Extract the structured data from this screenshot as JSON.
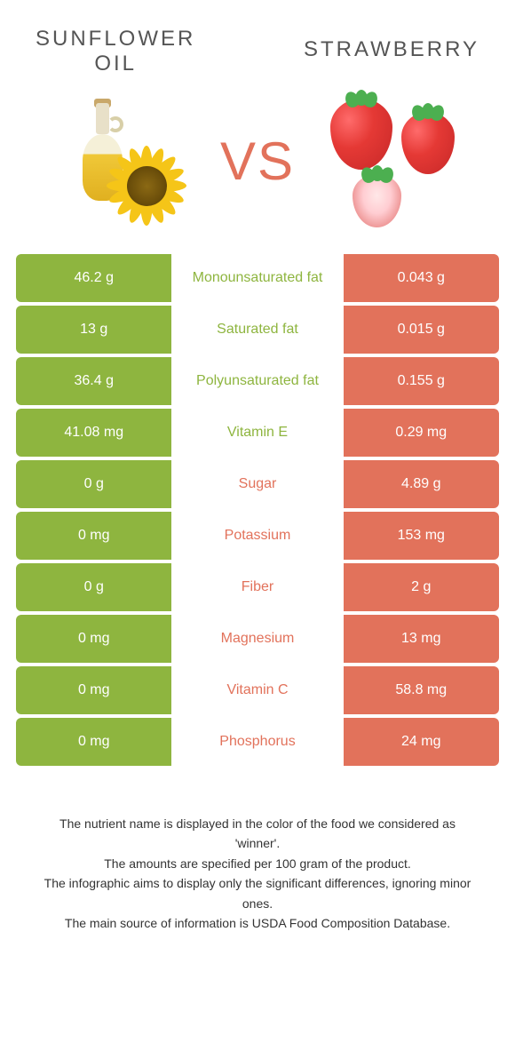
{
  "colors": {
    "left": "#8eb53f",
    "right": "#e2725b",
    "mid_bg": "#ffffff",
    "cell_text": "#ffffff"
  },
  "header": {
    "left_title": "Sunflower\noil",
    "right_title": "Strawberry",
    "vs": "VS"
  },
  "rows": [
    {
      "left": "46.2 g",
      "label": "Monounsaturated fat",
      "right": "0.043 g",
      "winner": "left"
    },
    {
      "left": "13 g",
      "label": "Saturated fat",
      "right": "0.015 g",
      "winner": "left"
    },
    {
      "left": "36.4 g",
      "label": "Polyunsaturated fat",
      "right": "0.155 g",
      "winner": "left"
    },
    {
      "left": "41.08 mg",
      "label": "Vitamin E",
      "right": "0.29 mg",
      "winner": "left"
    },
    {
      "left": "0 g",
      "label": "Sugar",
      "right": "4.89 g",
      "winner": "right"
    },
    {
      "left": "0 mg",
      "label": "Potassium",
      "right": "153 mg",
      "winner": "right"
    },
    {
      "left": "0 g",
      "label": "Fiber",
      "right": "2 g",
      "winner": "right"
    },
    {
      "left": "0 mg",
      "label": "Magnesium",
      "right": "13 mg",
      "winner": "right"
    },
    {
      "left": "0 mg",
      "label": "Vitamin C",
      "right": "58.8 mg",
      "winner": "right"
    },
    {
      "left": "0 mg",
      "label": "Phosphorus",
      "right": "24 mg",
      "winner": "right"
    }
  ],
  "footer": {
    "line1": "The nutrient name is displayed in the color of the food we considered as 'winner'.",
    "line2": "The amounts are specified per 100 gram of the product.",
    "line3": "The infographic aims to display only the significant differences, ignoring minor ones.",
    "line4": "The main source of information is USDA Food Composition Database."
  }
}
